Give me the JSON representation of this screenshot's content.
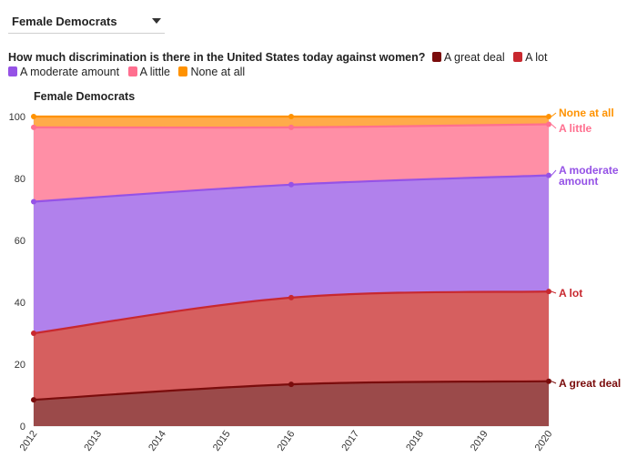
{
  "dropdown": {
    "selected": "Female Democrats"
  },
  "legend": {
    "question": "How much discrimination is there in the United States today against women?",
    "items": [
      {
        "label": "A great deal",
        "color": "#7a0c0c"
      },
      {
        "label": "A lot",
        "color": "#c8282f"
      },
      {
        "label": "A moderate amount",
        "color": "#9552e6"
      },
      {
        "label": "A little",
        "color": "#ff6f8f"
      },
      {
        "label": "None at all",
        "color": "#ff9200"
      }
    ]
  },
  "chart_data": {
    "type": "area",
    "title": "Female Democrats",
    "stacked": true,
    "xlabel": "",
    "ylabel": "",
    "x": [
      2012,
      2016,
      2020
    ],
    "x_ticks": [
      "2012",
      "2013",
      "2014",
      "2015",
      "2016",
      "2017",
      "2018",
      "2019",
      "2020"
    ],
    "ylim": [
      0,
      100
    ],
    "y_ticks": [
      "0",
      "20",
      "40",
      "60",
      "80",
      "100"
    ],
    "grid": true,
    "series": [
      {
        "name": "A great deal",
        "values": [
          8.5,
          13.5,
          14.5
        ],
        "cumulative": [
          8.5,
          13.5,
          14.5
        ],
        "color": "#7a0c0c",
        "fill": "#9b4a4a"
      },
      {
        "name": "A lot",
        "values": [
          21.5,
          28,
          29
        ],
        "cumulative": [
          30,
          41.5,
          43.5
        ],
        "color": "#c8282f",
        "fill": "#d65f5f"
      },
      {
        "name": "A moderate amount",
        "values": [
          42.5,
          36.5,
          37.5
        ],
        "cumulative": [
          72.5,
          78,
          81
        ],
        "color": "#9552e6",
        "fill": "#b181ec"
      },
      {
        "name": "A little",
        "values": [
          24,
          18.5,
          16.5
        ],
        "cumulative": [
          96.5,
          96.5,
          97.5
        ],
        "color": "#ff6f8f",
        "fill": "#ff8fa6"
      },
      {
        "name": "None at all",
        "values": [
          3.5,
          3.5,
          2.5
        ],
        "cumulative": [
          100,
          100,
          100
        ],
        "color": "#ff9200",
        "fill": "#ffab4a"
      }
    ],
    "end_labels": [
      {
        "text": "None at all",
        "color": "#ff9200"
      },
      {
        "text": "A little",
        "color": "#ff6f8f"
      },
      {
        "text": "A moderate",
        "text2": "amount",
        "color": "#9552e6"
      },
      {
        "text": "A lot",
        "color": "#c8282f"
      },
      {
        "text": "A great deal",
        "color": "#7a0c0c"
      }
    ]
  }
}
